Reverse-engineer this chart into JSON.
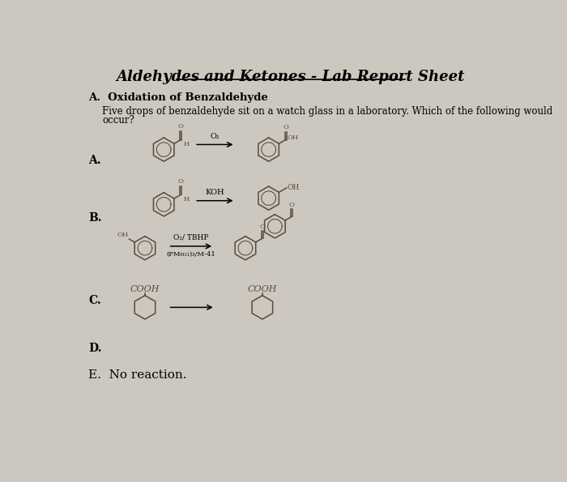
{
  "title": "Aldehydes and Ketones - Lab Report Sheet",
  "section_header": "A.  Oxidation of Benzaldehyde",
  "question_line1": "Five drops of benzaldehyde sit on a watch glass in a laboratory. Which of the following would",
  "question_line2": "occur?",
  "option_A": "A.",
  "option_B": "B.",
  "option_C": "C.",
  "option_D": "D.",
  "option_E": "E.  No reaction.",
  "reagent_A": "O₂",
  "reagent_B": "KOH",
  "reagent_C1": "O₂/ TBHP",
  "reagent_C2": "(PMo₁₁)₃/M-41",
  "bg_color": "#ccc8c0",
  "mol_color": "#5a4a3a",
  "text_color": "#000000",
  "figsize": [
    7.0,
    5.95
  ],
  "dpi": 100
}
